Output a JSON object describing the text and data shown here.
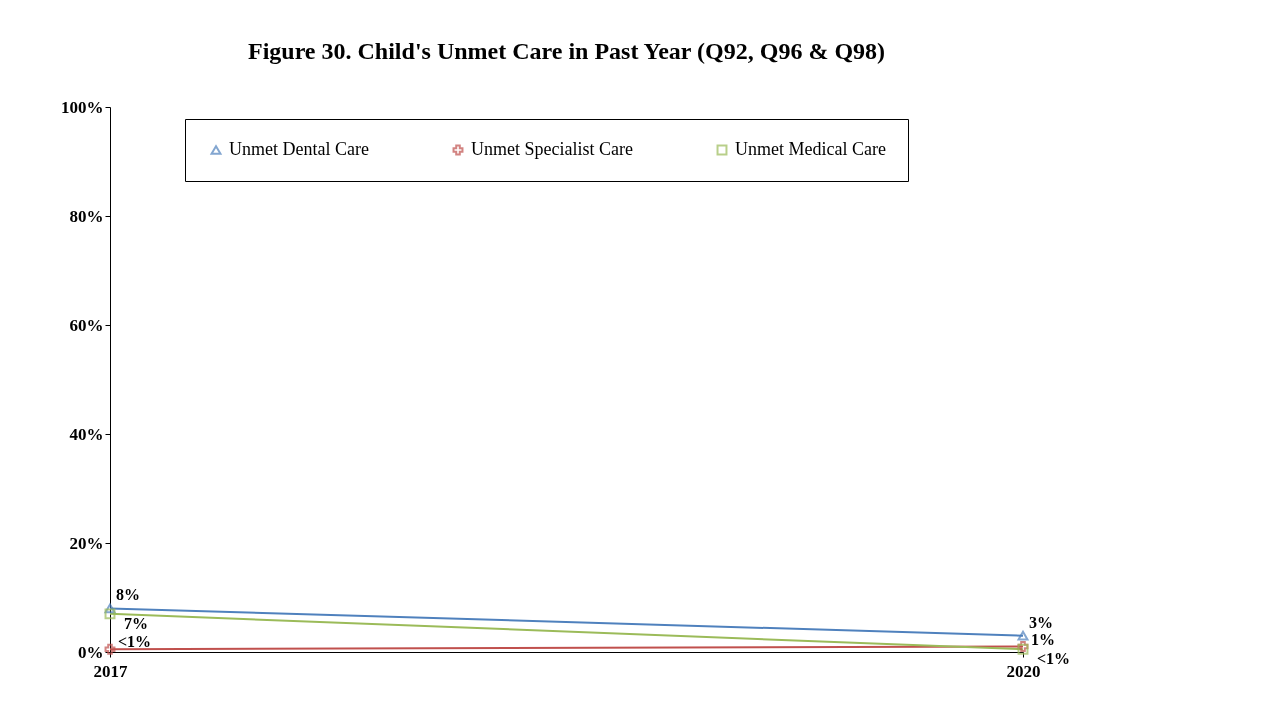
{
  "chart_data": {
    "type": "line",
    "title": "Figure 30. Child's Unmet Care in Past Year (Q92, Q96 & Q98)",
    "categories": [
      "2017",
      "2020"
    ],
    "series": [
      {
        "name": "Unmet Dental Care",
        "color": "#4f81bd",
        "marker": "triangle",
        "values": [
          8,
          3
        ],
        "value_labels": [
          "8%",
          "3%"
        ]
      },
      {
        "name": "Unmet Specialist Care",
        "color": "#c0504d",
        "marker": "cross",
        "values": [
          0.5,
          1
        ],
        "value_labels": [
          "<1%",
          "1%"
        ]
      },
      {
        "name": "Unmet Medical Care",
        "color": "#9bbb59",
        "marker": "square",
        "values": [
          7,
          0.5
        ],
        "value_labels": [
          "7%",
          "<1%"
        ]
      }
    ],
    "ylim": [
      0,
      100
    ],
    "yticks": [
      {
        "value": 0,
        "label": "0%"
      },
      {
        "value": 20,
        "label": "20%"
      },
      {
        "value": 40,
        "label": "40%"
      },
      {
        "value": 60,
        "label": "60%"
      },
      {
        "value": 80,
        "label": "80%"
      },
      {
        "value": 100,
        "label": "100%"
      }
    ],
    "grid": false,
    "legend": "top"
  }
}
